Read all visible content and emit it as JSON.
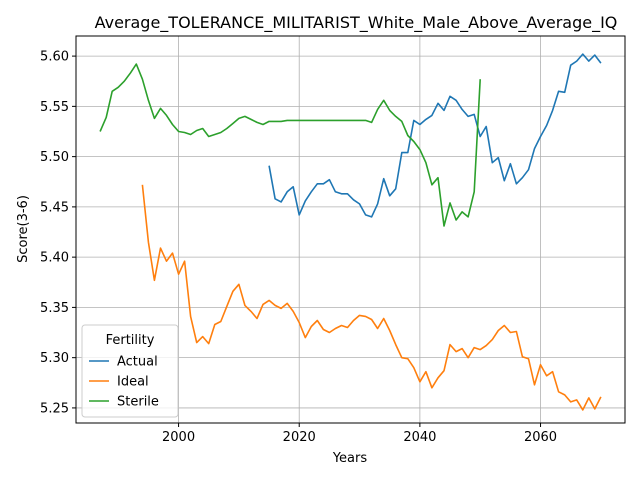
{
  "chart_data": {
    "type": "line",
    "title": "Average_TOLERANCE_MILITARIST_White_Male_Above_Average_IQ",
    "xlabel": "Years",
    "ylabel": "Score(3-6)",
    "xlim": [
      1983,
      2074
    ],
    "ylim": [
      5.235,
      5.62
    ],
    "xticks": [
      2000,
      2020,
      2040,
      2060
    ],
    "yticks": [
      5.25,
      5.3,
      5.35,
      5.4,
      5.45,
      5.5,
      5.55,
      5.6
    ],
    "ytick_labels": [
      "5.25",
      "5.30",
      "5.35",
      "5.40",
      "5.45",
      "5.50",
      "5.55",
      "5.60"
    ],
    "grid": true,
    "legend": {
      "title": "Fertility",
      "placement": "lower-left"
    },
    "series": [
      {
        "name": "Actual",
        "color": "#1f77b4",
        "x": [
          2015,
          2016,
          2017,
          2018,
          2019,
          2020,
          2021,
          2022,
          2023,
          2024,
          2025,
          2026,
          2027,
          2028,
          2029,
          2030,
          2031,
          2032,
          2033,
          2034,
          2035,
          2036,
          2037,
          2038,
          2039,
          2040,
          2041,
          2042,
          2043,
          2044,
          2045,
          2046,
          2047,
          2048,
          2049,
          2050,
          2051,
          2052,
          2053,
          2054,
          2055,
          2056,
          2057,
          2058,
          2059,
          2060,
          2061,
          2062,
          2063,
          2064,
          2065,
          2066,
          2067,
          2068,
          2069,
          2070
        ],
        "values": [
          5.491,
          5.458,
          5.455,
          5.465,
          5.47,
          5.442,
          5.456,
          5.465,
          5.473,
          5.473,
          5.477,
          5.465,
          5.463,
          5.463,
          5.457,
          5.453,
          5.442,
          5.44,
          5.453,
          5.478,
          5.461,
          5.468,
          5.504,
          5.504,
          5.536,
          5.532,
          5.537,
          5.541,
          5.553,
          5.546,
          5.56,
          5.556,
          5.547,
          5.54,
          5.542,
          5.52,
          5.53,
          5.494,
          5.499,
          5.476,
          5.493,
          5.473,
          5.479,
          5.487,
          5.508,
          5.52,
          5.531,
          5.546,
          5.565,
          5.564,
          5.591,
          5.595,
          5.602,
          5.595,
          5.601,
          5.593
        ]
      },
      {
        "name": "Ideal",
        "color": "#ff7f0e",
        "x": [
          1994,
          1995,
          1996,
          1997,
          1998,
          1999,
          2000,
          2001,
          2002,
          2003,
          2004,
          2005,
          2006,
          2007,
          2008,
          2009,
          2010,
          2011,
          2012,
          2013,
          2014,
          2015,
          2016,
          2017,
          2018,
          2019,
          2020,
          2021,
          2022,
          2023,
          2024,
          2025,
          2026,
          2027,
          2028,
          2029,
          2030,
          2031,
          2032,
          2033,
          2034,
          2035,
          2036,
          2037,
          2038,
          2039,
          2040,
          2041,
          2042,
          2043,
          2044,
          2045,
          2046,
          2047,
          2048,
          2049,
          2050,
          2051,
          2052,
          2053,
          2054,
          2055,
          2056,
          2057,
          2058,
          2059,
          2060,
          2061,
          2062,
          2063,
          2064,
          2065,
          2066,
          2067,
          2068,
          2069,
          2070
        ],
        "values": [
          5.472,
          5.415,
          5.377,
          5.409,
          5.396,
          5.404,
          5.383,
          5.396,
          5.341,
          5.315,
          5.321,
          5.314,
          5.333,
          5.336,
          5.351,
          5.366,
          5.373,
          5.352,
          5.346,
          5.339,
          5.353,
          5.357,
          5.352,
          5.349,
          5.354,
          5.346,
          5.335,
          5.32,
          5.331,
          5.337,
          5.328,
          5.325,
          5.329,
          5.332,
          5.33,
          5.337,
          5.342,
          5.341,
          5.338,
          5.329,
          5.339,
          5.327,
          5.313,
          5.3,
          5.299,
          5.29,
          5.276,
          5.286,
          5.27,
          5.28,
          5.287,
          5.313,
          5.306,
          5.309,
          5.3,
          5.31,
          5.308,
          5.312,
          5.318,
          5.327,
          5.332,
          5.325,
          5.326,
          5.301,
          5.299,
          5.273,
          5.293,
          5.282,
          5.286,
          5.266,
          5.263,
          5.256,
          5.258,
          5.248,
          5.26,
          5.249,
          5.261
        ]
      },
      {
        "name": "Sterile",
        "color": "#2ca02c",
        "x": [
          1987,
          1988,
          1989,
          1990,
          1991,
          1992,
          1993,
          1994,
          1995,
          1996,
          1997,
          1998,
          1999,
          2000,
          2001,
          2002,
          2003,
          2004,
          2005,
          2006,
          2007,
          2008,
          2009,
          2010,
          2011,
          2012,
          2013,
          2014,
          2015,
          2016,
          2017,
          2018,
          2019,
          2020,
          2021,
          2022,
          2023,
          2024,
          2025,
          2026,
          2027,
          2028,
          2029,
          2030,
          2031,
          2032,
          2033,
          2034,
          2035,
          2036,
          2037,
          2038,
          2039,
          2040,
          2041,
          2042,
          2043,
          2044,
          2045,
          2046,
          2047,
          2048,
          2049,
          2050
        ],
        "values": [
          5.525,
          5.539,
          5.565,
          5.569,
          5.575,
          5.583,
          5.592,
          5.577,
          5.556,
          5.538,
          5.548,
          5.541,
          5.532,
          5.525,
          5.524,
          5.522,
          5.526,
          5.528,
          5.52,
          5.522,
          5.524,
          5.528,
          5.533,
          5.538,
          5.54,
          5.537,
          5.534,
          5.532,
          5.535,
          5.535,
          5.535,
          5.536,
          5.536,
          5.536,
          5.536,
          5.536,
          5.536,
          5.536,
          5.536,
          5.536,
          5.536,
          5.536,
          5.536,
          5.536,
          5.536,
          5.534,
          5.547,
          5.556,
          5.546,
          5.54,
          5.535,
          5.521,
          5.515,
          5.507,
          5.494,
          5.472,
          5.479,
          5.431,
          5.454,
          5.437,
          5.445,
          5.44,
          5.465,
          5.577
        ]
      }
    ]
  }
}
